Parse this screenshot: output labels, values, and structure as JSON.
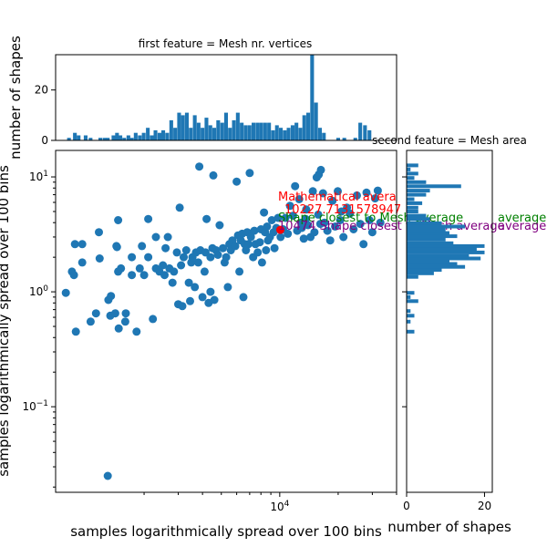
{
  "chart_data": {
    "type": "scatter",
    "colors": {
      "points": "#1f77b4",
      "bars": "#1f77b4",
      "highlight_point": "#ff0000",
      "annotation_red": "#ff0000",
      "annotation_green": "#008000",
      "annotation_purple": "#800080"
    },
    "scatter": {
      "xlabel": "samples logarithmically spread over 100 bins",
      "ylabel": "samples logarithmically spread over 100 bins",
      "xscale": "log",
      "yscale": "log",
      "xlim": [
        700,
        40000
      ],
      "ylim": [
        0.018,
        17
      ],
      "x_ticks": [
        {
          "value": 10000,
          "label": "10^4"
        }
      ],
      "y_ticks": [
        {
          "value": 0.1,
          "label": "10^-1"
        },
        {
          "value": 1,
          "label": "10^0"
        },
        {
          "value": 10,
          "label": "10^1"
        }
      ],
      "points": [
        [
          1300,
          0.025
        ],
        [
          790,
          0.98
        ],
        [
          890,
          0.45
        ],
        [
          850,
          1.5
        ],
        [
          870,
          1.4
        ],
        [
          880,
          2.6
        ],
        [
          960,
          1.8
        ],
        [
          960,
          2.6
        ],
        [
          1060,
          0.55
        ],
        [
          1130,
          0.65
        ],
        [
          1180,
          1.95
        ],
        [
          1170,
          3.3
        ],
        [
          1310,
          0.85
        ],
        [
          1340,
          0.62
        ],
        [
          1350,
          0.92
        ],
        [
          1420,
          0.65
        ],
        [
          1440,
          2.5
        ],
        [
          1450,
          2.45
        ],
        [
          1470,
          4.2
        ],
        [
          1480,
          0.48
        ],
        [
          1470,
          1.5
        ],
        [
          1520,
          1.6
        ],
        [
          1600,
          0.55
        ],
        [
          1610,
          0.65
        ],
        [
          1730,
          1.4
        ],
        [
          1730,
          2.0
        ],
        [
          1830,
          0.45
        ],
        [
          1900,
          1.6
        ],
        [
          1950,
          2.5
        ],
        [
          2000,
          1.4
        ],
        [
          2100,
          4.3
        ],
        [
          2100,
          2.0
        ],
        [
          2220,
          0.58
        ],
        [
          2300,
          1.6
        ],
        [
          2300,
          3.0
        ],
        [
          2400,
          1.5
        ],
        [
          2500,
          1.7
        ],
        [
          2550,
          1.4
        ],
        [
          2580,
          2.4
        ],
        [
          2650,
          3.0
        ],
        [
          2700,
          1.6
        ],
        [
          2800,
          1.2
        ],
        [
          2850,
          1.5
        ],
        [
          2950,
          2.2
        ],
        [
          3000,
          0.78
        ],
        [
          3050,
          5.4
        ],
        [
          3100,
          1.7
        ],
        [
          3150,
          0.75
        ],
        [
          3200,
          2.0
        ],
        [
          3300,
          2.3
        ],
        [
          3400,
          1.2
        ],
        [
          3450,
          0.83
        ],
        [
          3500,
          1.8
        ],
        [
          3550,
          2.0
        ],
        [
          3650,
          1.1
        ],
        [
          3700,
          2.2
        ],
        [
          3800,
          1.8
        ],
        [
          3850,
          12.3
        ],
        [
          3900,
          2.3
        ],
        [
          4000,
          0.9
        ],
        [
          4100,
          1.5
        ],
        [
          4150,
          2.2
        ],
        [
          4200,
          4.3
        ],
        [
          4300,
          0.8
        ],
        [
          4400,
          2.0
        ],
        [
          4400,
          1.0
        ],
        [
          4500,
          2.4
        ],
        [
          4550,
          10.3
        ],
        [
          4600,
          0.85
        ],
        [
          4700,
          2.3
        ],
        [
          4800,
          2.1
        ],
        [
          4900,
          3.8
        ],
        [
          5100,
          2.4
        ],
        [
          5200,
          1.8
        ],
        [
          5300,
          2.0
        ],
        [
          5400,
          1.1
        ],
        [
          5500,
          2.6
        ],
        [
          5600,
          2.3
        ],
        [
          5700,
          2.8
        ],
        [
          5900,
          2.5
        ],
        [
          6000,
          9.1
        ],
        [
          6100,
          3.1
        ],
        [
          6200,
          1.5
        ],
        [
          6300,
          2.8
        ],
        [
          6400,
          3.2
        ],
        [
          6500,
          0.9
        ],
        [
          6600,
          2.6
        ],
        [
          6700,
          2.3
        ],
        [
          6800,
          3.3
        ],
        [
          6900,
          2.6
        ],
        [
          7000,
          10.8
        ],
        [
          7100,
          3.0
        ],
        [
          7300,
          2.0
        ],
        [
          7400,
          3.4
        ],
        [
          7500,
          2.6
        ],
        [
          7700,
          2.2
        ],
        [
          7900,
          2.7
        ],
        [
          8000,
          3.5
        ],
        [
          8100,
          1.8
        ],
        [
          8300,
          4.9
        ],
        [
          8400,
          3.3
        ],
        [
          8500,
          2.3
        ],
        [
          8600,
          3.7
        ],
        [
          8700,
          2.8
        ],
        [
          8900,
          3.0
        ],
        [
          9100,
          4.2
        ],
        [
          9300,
          3.3
        ],
        [
          9400,
          2.4
        ],
        [
          9600,
          3.6
        ],
        [
          9800,
          4.4
        ],
        [
          10100,
          3.0
        ],
        [
          10400,
          3.5
        ],
        [
          10700,
          4.4
        ],
        [
          11000,
          3.2
        ],
        [
          11300,
          5.6
        ],
        [
          11700,
          4.6
        ],
        [
          12000,
          8.3
        ],
        [
          12300,
          3.4
        ],
        [
          12600,
          6.4
        ],
        [
          13000,
          3.6
        ],
        [
          13300,
          2.9
        ],
        [
          13700,
          5.2
        ],
        [
          14000,
          3.8
        ],
        [
          14400,
          3.0
        ],
        [
          14800,
          7.5
        ],
        [
          15100,
          3.3
        ],
        [
          15500,
          9.9
        ],
        [
          15900,
          10.5
        ],
        [
          16300,
          11.5
        ],
        [
          16700,
          7.2
        ],
        [
          17000,
          4.0
        ],
        [
          17600,
          3.4
        ],
        [
          18200,
          2.8
        ],
        [
          18700,
          6.2
        ],
        [
          19300,
          3.7
        ],
        [
          19900,
          7.5
        ],
        [
          20500,
          4.2
        ],
        [
          21300,
          3.0
        ],
        [
          22200,
          5.4
        ],
        [
          23000,
          4.8
        ],
        [
          24000,
          3.5
        ],
        [
          25000,
          6.9
        ],
        [
          26000,
          3.9
        ],
        [
          27000,
          2.6
        ],
        [
          28000,
          7.3
        ],
        [
          29000,
          4.2
        ],
        [
          30000,
          3.3
        ],
        [
          31000,
          6.5
        ],
        [
          32000,
          7.6
        ],
        [
          33000,
          4.0
        ],
        [
          12900,
          4.0
        ],
        [
          13600,
          4.3
        ],
        [
          15800,
          4.7
        ],
        [
          16200,
          3.9
        ],
        [
          20800,
          5.0
        ]
      ],
      "highlight_point": [
        10070,
        3.46
      ],
      "annotations": [
        {
          "text": "Mathematical avera",
          "color": "red"
        },
        {
          "text": "10227.7131578947",
          "color": "red"
        },
        {
          "text": "Shape closest to Mesh average",
          "color": "green"
        },
        {
          "text": "10474 Shape closest to Mesh average",
          "color": "purple"
        }
      ],
      "right_annotations": [
        {
          "text": "average",
          "color": "green"
        },
        {
          "text": "average",
          "color": "purple"
        }
      ]
    },
    "top_histogram": {
      "title": "first feature = Mesh nr. vertices",
      "ylabel": "number of shapes",
      "ylim": [
        0,
        34
      ],
      "y_ticks": [
        0,
        20
      ],
      "bins": [
        {
          "x": 820,
          "count": 1
        },
        {
          "x": 880,
          "count": 3
        },
        {
          "x": 920,
          "count": 2
        },
        {
          "x": 1000,
          "count": 2
        },
        {
          "x": 1060,
          "count": 1
        },
        {
          "x": 1190,
          "count": 1
        },
        {
          "x": 1250,
          "count": 1
        },
        {
          "x": 1300,
          "count": 1
        },
        {
          "x": 1390,
          "count": 2
        },
        {
          "x": 1450,
          "count": 3
        },
        {
          "x": 1510,
          "count": 2
        },
        {
          "x": 1580,
          "count": 1
        },
        {
          "x": 1660,
          "count": 2
        },
        {
          "x": 1730,
          "count": 1
        },
        {
          "x": 1810,
          "count": 3
        },
        {
          "x": 1900,
          "count": 2
        },
        {
          "x": 1990,
          "count": 3
        },
        {
          "x": 2090,
          "count": 5
        },
        {
          "x": 2190,
          "count": 2
        },
        {
          "x": 2290,
          "count": 4
        },
        {
          "x": 2400,
          "count": 3
        },
        {
          "x": 2510,
          "count": 4
        },
        {
          "x": 2630,
          "count": 3
        },
        {
          "x": 2760,
          "count": 8
        },
        {
          "x": 2890,
          "count": 5
        },
        {
          "x": 3030,
          "count": 11
        },
        {
          "x": 3170,
          "count": 10
        },
        {
          "x": 3320,
          "count": 11
        },
        {
          "x": 3480,
          "count": 5
        },
        {
          "x": 3650,
          "count": 10
        },
        {
          "x": 3820,
          "count": 7
        },
        {
          "x": 4000,
          "count": 5
        },
        {
          "x": 4190,
          "count": 9
        },
        {
          "x": 4390,
          "count": 6
        },
        {
          "x": 4600,
          "count": 5
        },
        {
          "x": 4820,
          "count": 8
        },
        {
          "x": 5050,
          "count": 7
        },
        {
          "x": 5290,
          "count": 11
        },
        {
          "x": 5540,
          "count": 5
        },
        {
          "x": 5800,
          "count": 8
        },
        {
          "x": 6080,
          "count": 11
        },
        {
          "x": 6370,
          "count": 7
        },
        {
          "x": 6670,
          "count": 6
        },
        {
          "x": 6990,
          "count": 6
        },
        {
          "x": 7320,
          "count": 7
        },
        {
          "x": 7670,
          "count": 7
        },
        {
          "x": 8030,
          "count": 7
        },
        {
          "x": 8410,
          "count": 7
        },
        {
          "x": 8810,
          "count": 7
        },
        {
          "x": 9230,
          "count": 4
        },
        {
          "x": 9670,
          "count": 6
        },
        {
          "x": 10130,
          "count": 5
        },
        {
          "x": 10610,
          "count": 4
        },
        {
          "x": 11110,
          "count": 5
        },
        {
          "x": 11640,
          "count": 6
        },
        {
          "x": 12190,
          "count": 7
        },
        {
          "x": 12770,
          "count": 5
        },
        {
          "x": 13380,
          "count": 10
        },
        {
          "x": 14010,
          "count": 11
        },
        {
          "x": 14680,
          "count": 34
        },
        {
          "x": 15380,
          "count": 15
        },
        {
          "x": 16110,
          "count": 5
        },
        {
          "x": 16870,
          "count": 3
        },
        {
          "x": 20000,
          "count": 1
        },
        {
          "x": 21500,
          "count": 1
        },
        {
          "x": 24500,
          "count": 1
        },
        {
          "x": 26000,
          "count": 7
        },
        {
          "x": 27500,
          "count": 6
        },
        {
          "x": 29000,
          "count": 4
        }
      ]
    },
    "right_histogram": {
      "title": "second feature = Mesh area",
      "xlabel": "number of shapes",
      "xlim": [
        0,
        22
      ],
      "x_ticks": [
        0,
        20
      ],
      "bins": [
        {
          "y": 0.45,
          "count": 2
        },
        {
          "y": 0.55,
          "count": 1
        },
        {
          "y": 0.62,
          "count": 2
        },
        {
          "y": 0.68,
          "count": 1
        },
        {
          "y": 0.83,
          "count": 3
        },
        {
          "y": 0.9,
          "count": 1
        },
        {
          "y": 0.98,
          "count": 2
        },
        {
          "y": 1.35,
          "count": 3
        },
        {
          "y": 1.45,
          "count": 7
        },
        {
          "y": 1.55,
          "count": 9
        },
        {
          "y": 1.65,
          "count": 15
        },
        {
          "y": 1.75,
          "count": 13
        },
        {
          "y": 1.85,
          "count": 11
        },
        {
          "y": 1.95,
          "count": 19
        },
        {
          "y": 2.05,
          "count": 16
        },
        {
          "y": 2.2,
          "count": 20
        },
        {
          "y": 2.35,
          "count": 18
        },
        {
          "y": 2.5,
          "count": 20
        },
        {
          "y": 2.65,
          "count": 12
        },
        {
          "y": 2.85,
          "count": 10
        },
        {
          "y": 3.05,
          "count": 13
        },
        {
          "y": 3.25,
          "count": 11
        },
        {
          "y": 3.45,
          "count": 10
        },
        {
          "y": 3.7,
          "count": 15
        },
        {
          "y": 3.95,
          "count": 9
        },
        {
          "y": 4.3,
          "count": 6
        },
        {
          "y": 4.6,
          "count": 5
        },
        {
          "y": 5.0,
          "count": 3
        },
        {
          "y": 5.4,
          "count": 3
        },
        {
          "y": 5.9,
          "count": 4
        },
        {
          "y": 6.4,
          "count": 2
        },
        {
          "y": 7.0,
          "count": 5
        },
        {
          "y": 7.6,
          "count": 6
        },
        {
          "y": 8.3,
          "count": 14
        },
        {
          "y": 9.0,
          "count": 5
        },
        {
          "y": 9.8,
          "count": 2
        },
        {
          "y": 10.7,
          "count": 3
        },
        {
          "y": 11.6,
          "count": 1
        },
        {
          "y": 12.6,
          "count": 3
        }
      ]
    }
  }
}
